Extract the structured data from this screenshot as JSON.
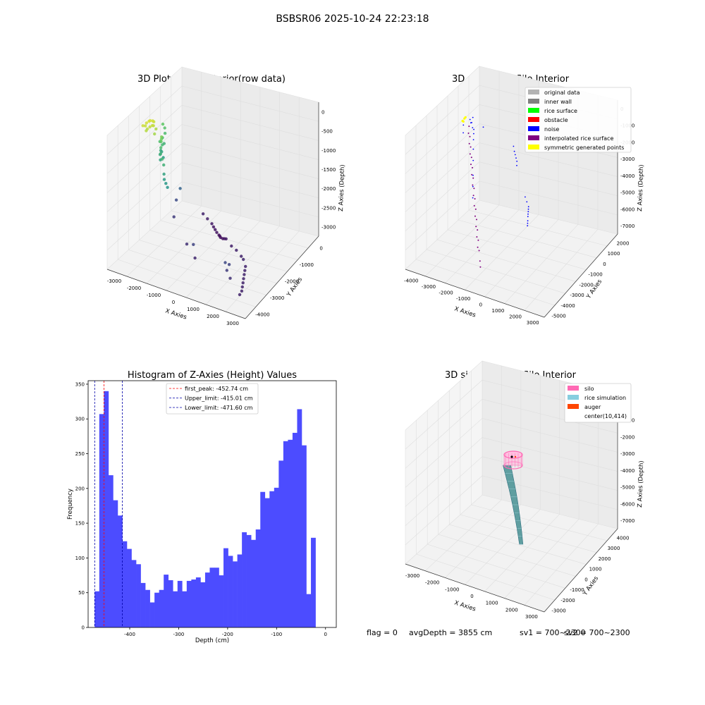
{
  "suptitle": "BSBSR06 2025-10-24 22:23:18",
  "status_line": {
    "flag": "flag = 0",
    "avg_depth": "avgDepth = 3855 cm",
    "sv1": "sv1 = 700~2300",
    "sv2": "sv2 = 700~2300"
  },
  "chart_data": [
    {
      "type": "scatter",
      "subtype": "3d",
      "title": "3D Plot of Silo Interior(row data)",
      "xlabel": "X Axies",
      "ylabel": "Y Axies",
      "zlabel": "Z Axies (Depth)",
      "x_ticks": [
        "-3000",
        "-2000",
        "-1000",
        "0",
        "1000",
        "2000",
        "3000"
      ],
      "y_ticks": [
        "0",
        "-1000",
        "-2000",
        "-3000",
        "-4000"
      ],
      "z_ticks": [
        "0",
        "-500",
        "-1000",
        "-1500",
        "-2000",
        "-2500",
        "-3000"
      ],
      "xlim": [
        -3300,
        3300
      ],
      "ylim": [
        -4500,
        500
      ],
      "zlim": [
        -3300,
        200
      ],
      "colormap": "viridis",
      "points": [
        [
          -2000,
          -800,
          -2950
        ],
        [
          -1900,
          -1000,
          -3000
        ],
        [
          -1800,
          -1200,
          -3050
        ],
        [
          -1700,
          -1300,
          -3080
        ],
        [
          -1600,
          -1400,
          -3100
        ],
        [
          -1500,
          -1500,
          -3120
        ],
        [
          -1450,
          -1600,
          -3150
        ],
        [
          -1400,
          -1650,
          -3150
        ],
        [
          -1350,
          -1700,
          -3160
        ],
        [
          -1300,
          -1800,
          -3150
        ],
        [
          -1200,
          -1900,
          -3100
        ],
        [
          -1100,
          -2000,
          -3050
        ],
        [
          -600,
          -2400,
          -3000
        ],
        [
          -300,
          -2700,
          -2950
        ],
        [
          0,
          -3000,
          -2950
        ],
        [
          300,
          -3200,
          -2900
        ],
        [
          600,
          -3400,
          -2950
        ],
        [
          900,
          -3500,
          -2950
        ],
        [
          1200,
          -3600,
          -2950
        ],
        [
          1500,
          -3700,
          -2950
        ],
        [
          1800,
          -3800,
          -2950
        ],
        [
          2100,
          -3900,
          -2950
        ],
        [
          2400,
          -4000,
          -2950
        ],
        [
          2700,
          -4050,
          -2950
        ],
        [
          1800,
          -3300,
          -2600
        ],
        [
          1900,
          -3200,
          -2550
        ],
        [
          2000,
          -3300,
          -2700
        ],
        [
          2200,
          -3500,
          -2800
        ],
        [
          -1200,
          -300,
          -2200
        ],
        [
          -1100,
          -200,
          -2500
        ],
        [
          -400,
          -400,
          -2700
        ],
        [
          900,
          -1400,
          -2800
        ],
        [
          1300,
          -1800,
          -2600
        ],
        [
          1400,
          -1900,
          -2900
        ],
        [
          -1300,
          300,
          -800
        ],
        [
          -1250,
          350,
          -700
        ],
        [
          -1200,
          250,
          -900
        ],
        [
          -1100,
          300,
          -1000
        ],
        [
          -1000,
          200,
          -1100
        ],
        [
          -900,
          250,
          -1300
        ],
        [
          -800,
          150,
          -1400
        ],
        [
          -700,
          200,
          -1200
        ],
        [
          -600,
          100,
          -1000
        ],
        [
          -500,
          150,
          -900
        ],
        [
          -400,
          100,
          -1200
        ],
        [
          -300,
          50,
          -1300
        ],
        [
          -200,
          0,
          -1100
        ],
        [
          -100,
          -50,
          -900
        ],
        [
          0,
          -100,
          -700
        ],
        [
          100,
          -150,
          -600
        ],
        [
          200,
          -200,
          -500
        ],
        [
          400,
          -300,
          -1000
        ],
        [
          500,
          -400,
          -1100
        ],
        [
          600,
          -450,
          -1300
        ],
        [
          700,
          -500,
          -1400
        ],
        [
          800,
          -600,
          -1450
        ],
        [
          900,
          -700,
          -1500
        ],
        [
          400,
          0,
          -100
        ],
        [
          500,
          0,
          -50
        ],
        [
          600,
          50,
          -30
        ],
        [
          700,
          50,
          -20
        ],
        [
          800,
          100,
          -50
        ],
        [
          900,
          100,
          -100
        ],
        [
          1000,
          150,
          -80
        ],
        [
          550,
          -50,
          -150
        ],
        [
          650,
          -50,
          -120
        ],
        [
          750,
          0,
          -140
        ],
        [
          850,
          50,
          -180
        ],
        [
          950,
          50,
          -200
        ],
        [
          450,
          -100,
          -250
        ],
        [
          700,
          -150,
          -300
        ]
      ]
    },
    {
      "type": "scatter",
      "subtype": "3d",
      "title": "3D classify of Silo Interior",
      "xlabel": "X Axies",
      "ylabel": "Y Axies",
      "zlabel": "Z Axies (Depth)",
      "x_ticks": [
        "-4000",
        "-3000",
        "-2000",
        "-1000",
        "0",
        "1000",
        "2000",
        "3000"
      ],
      "y_ticks": [
        "2000",
        "1000",
        "0",
        "-1000",
        "-2000",
        "-3000",
        "-4000",
        "-5000"
      ],
      "z_ticks": [
        "0",
        "-1000",
        "-2000",
        "-3000",
        "-4000",
        "-5000",
        "-6000",
        "-7000"
      ],
      "xlim": [
        -4200,
        3300
      ],
      "ylim": [
        -5300,
        2300
      ],
      "zlim": [
        -7300,
        300
      ],
      "legend_position": "top-right",
      "legend": [
        {
          "label": "original data",
          "color": "#b3b3b3"
        },
        {
          "label": "inner wall",
          "color": "#808080"
        },
        {
          "label": "rice surface",
          "color": "#00ff00"
        },
        {
          "label": "obstacle",
          "color": "#ff0000"
        },
        {
          "label": "noise",
          "color": "#0000ff"
        },
        {
          "label": "interpolated rice surface",
          "color": "#800080"
        },
        {
          "label": "symmetric generated points",
          "color": "#ffff00"
        }
      ],
      "noise_points": [
        [
          -3400,
          0,
          -3000
        ],
        [
          -3300,
          -100,
          -3200
        ],
        [
          -3200,
          -200,
          -3300
        ],
        [
          -3100,
          -300,
          -3400
        ],
        [
          -3000,
          -400,
          -3500
        ],
        [
          -2800,
          -500,
          -3600
        ],
        [
          -1800,
          -1500,
          -4500
        ],
        [
          -1600,
          -1700,
          -4600
        ],
        [
          -1400,
          -1900,
          -4700
        ],
        [
          -1200,
          -2000,
          -4700
        ],
        [
          -1000,
          -2100,
          -4700
        ],
        [
          -800,
          -2200,
          -4700
        ],
        [
          -600,
          -2300,
          -4700
        ],
        [
          -400,
          -2400,
          -4800
        ],
        [
          -200,
          -2500,
          -4800
        ],
        [
          0,
          -2600,
          -4800
        ],
        [
          -1500,
          1200,
          -800
        ],
        [
          -1400,
          1300,
          -900
        ],
        [
          -1300,
          1200,
          -1000
        ],
        [
          -1200,
          1100,
          -900
        ],
        [
          -1100,
          1000,
          -1100
        ],
        [
          -2000,
          900,
          -1500
        ],
        [
          -300,
          500,
          -600
        ],
        [
          -100,
          400,
          -700
        ],
        [
          100,
          300,
          -900
        ],
        [
          300,
          200,
          -1300
        ],
        [
          500,
          100,
          -1800
        ],
        [
          700,
          0,
          -2500
        ],
        [
          900,
          -100,
          -3000
        ],
        [
          1100,
          -200,
          -3500
        ],
        [
          200,
          800,
          -200
        ],
        [
          400,
          700,
          -500
        ]
      ],
      "interpolated_points": [
        [
          0,
          600,
          -300
        ],
        [
          100,
          500,
          -800
        ],
        [
          200,
          400,
          -1300
        ],
        [
          300,
          300,
          -1800
        ],
        [
          400,
          200,
          -2300
        ],
        [
          500,
          100,
          -2800
        ],
        [
          600,
          0,
          -3300
        ],
        [
          700,
          -100,
          -3800
        ],
        [
          800,
          -200,
          -4300
        ],
        [
          900,
          -300,
          -4800
        ],
        [
          1000,
          -400,
          -5300
        ],
        [
          1100,
          -500,
          -5800
        ],
        [
          1200,
          -600,
          -6300
        ],
        [
          1300,
          -700,
          -6800
        ],
        [
          1350,
          -750,
          -7100
        ],
        [
          150,
          550,
          -600
        ],
        [
          250,
          450,
          -1100
        ],
        [
          350,
          350,
          -1600
        ],
        [
          450,
          250,
          -2100
        ],
        [
          550,
          150,
          -2600
        ],
        [
          650,
          50,
          -3100
        ],
        [
          750,
          -50,
          -3600
        ],
        [
          850,
          -150,
          -4100
        ],
        [
          950,
          -250,
          -4600
        ],
        [
          1050,
          -350,
          -5100
        ],
        [
          1150,
          -450,
          -5600
        ],
        [
          1250,
          -550,
          -6100
        ]
      ],
      "symmetric_points": [
        [
          -200,
          900,
          0
        ],
        [
          0,
          850,
          50
        ],
        [
          200,
          800,
          0
        ],
        [
          100,
          900,
          -50
        ]
      ]
    },
    {
      "type": "bar",
      "subtype": "histogram",
      "title": "Histogram of Z-Axies (Height) Values",
      "xlabel": "Depth (cm)",
      "ylabel": "Frequency",
      "xlim": [
        -485,
        22
      ],
      "ylim": [
        0,
        355
      ],
      "x_ticks": [
        -400,
        -300,
        -200,
        -100,
        0
      ],
      "y_ticks": [
        0,
        50,
        100,
        150,
        200,
        250,
        300,
        350
      ],
      "bar_color": "#4c4cff",
      "bin_start": -471.6,
      "bin_width": 9.4,
      "values": [
        52,
        307,
        340,
        219,
        183,
        161,
        124,
        113,
        97,
        91,
        64,
        54,
        36,
        50,
        54,
        76,
        68,
        52,
        67,
        52,
        67,
        69,
        72,
        65,
        79,
        86,
        86,
        75,
        114,
        103,
        95,
        105,
        137,
        133,
        126,
        141,
        195,
        186,
        196,
        201,
        240,
        268,
        270,
        280,
        314,
        262,
        48,
        129
      ],
      "vlines": [
        {
          "label": "first_peak: -452.74 cm",
          "value": -452.74,
          "color": "#ff0000"
        },
        {
          "label": "Upper_limit: -415.01 cm",
          "value": -415.01,
          "color": "#0000aa"
        },
        {
          "label": "Lower_limit: -471.60 cm",
          "value": -471.6,
          "color": "#0000aa"
        }
      ],
      "legend_position": "top-center"
    },
    {
      "type": "scatter",
      "subtype": "3d-surface",
      "title": "3D simulation of Silo Interior",
      "xlabel": "X Axies",
      "ylabel": "Y Axies",
      "zlabel": "Z Axies (Depth)",
      "x_ticks": [
        "-3000",
        "-2000",
        "-1000",
        "0",
        "1000",
        "2000",
        "3000"
      ],
      "y_ticks": [
        "4000",
        "3000",
        "2000",
        "1000",
        "0",
        "-1000",
        "-2000",
        "-3000"
      ],
      "z_ticks": [
        "0",
        "-1000",
        "-2000",
        "-3000",
        "-4000",
        "-5000",
        "-6000",
        "-7000"
      ],
      "xlim": [
        -3300,
        3300
      ],
      "ylim": [
        -3300,
        4300
      ],
      "zlim": [
        -7300,
        300
      ],
      "legend_position": "top-right",
      "legend": [
        {
          "label": "silo",
          "color": "#ff69b4"
        },
        {
          "label": "rice simulation",
          "color": "#87cedf"
        },
        {
          "label": "auger",
          "color": "#ff4500"
        },
        {
          "label": "center(10,414)",
          "color": ""
        }
      ]
    }
  ]
}
